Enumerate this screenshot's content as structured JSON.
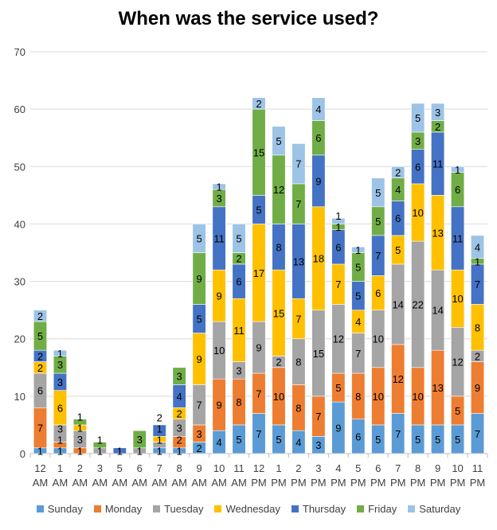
{
  "chart_data": {
    "type": "stacked-bar",
    "title": "When was the service used?",
    "xlabel": "",
    "ylabel": "",
    "ylim": [
      0,
      70
    ],
    "yticks": [
      0,
      10,
      20,
      30,
      40,
      50,
      60,
      70
    ],
    "grid": true,
    "legend_position": "bottom",
    "data_labels": true,
    "categories": [
      [
        "12",
        "AM"
      ],
      [
        "1",
        "AM"
      ],
      [
        "2",
        "AM"
      ],
      [
        "3",
        "AM"
      ],
      [
        "5",
        "AM"
      ],
      [
        "6",
        "AM"
      ],
      [
        "7",
        "AM"
      ],
      [
        "8",
        "AM"
      ],
      [
        "9",
        "AM"
      ],
      [
        "10",
        "AM"
      ],
      [
        "11",
        "AM"
      ],
      [
        "12",
        "PM"
      ],
      [
        "1",
        "PM"
      ],
      [
        "2",
        "PM"
      ],
      [
        "3",
        "PM"
      ],
      [
        "4",
        "PM"
      ],
      [
        "5",
        "PM"
      ],
      [
        "6",
        "PM"
      ],
      [
        "7",
        "PM"
      ],
      [
        "8",
        "PM"
      ],
      [
        "9",
        "PM"
      ],
      [
        "10",
        "PM"
      ],
      [
        "11",
        "PM"
      ]
    ],
    "series": [
      {
        "name": "Sunday",
        "color": "#5b9bd5",
        "values": [
          1,
          1,
          0,
          0,
          0,
          0,
          1,
          1,
          2,
          4,
          5,
          7,
          5,
          4,
          3,
          9,
          6,
          5,
          7,
          5,
          5,
          5,
          7
        ]
      },
      {
        "name": "Monday",
        "color": "#ed7d31",
        "values": [
          7,
          1,
          1,
          0,
          0,
          0,
          0,
          2,
          3,
          9,
          8,
          7,
          10,
          8,
          7,
          5,
          8,
          10,
          12,
          10,
          13,
          5,
          9
        ]
      },
      {
        "name": "Tuesday",
        "color": "#a5a5a5",
        "values": [
          6,
          3,
          3,
          1,
          0,
          1,
          1,
          3,
          7,
          10,
          3,
          9,
          2,
          8,
          15,
          12,
          7,
          10,
          14,
          22,
          14,
          12,
          2
        ]
      },
      {
        "name": "Wednesday",
        "color": "#ffc000",
        "values": [
          2,
          6,
          1,
          0,
          0,
          0,
          1,
          2,
          9,
          9,
          11,
          17,
          15,
          7,
          18,
          7,
          4,
          6,
          5,
          10,
          13,
          10,
          8
        ]
      },
      {
        "name": "Thursday",
        "color": "#4472c4",
        "values": [
          2,
          3,
          0,
          0,
          1,
          0,
          2,
          4,
          5,
          11,
          6,
          5,
          8,
          13,
          9,
          6,
          5,
          7,
          6,
          6,
          11,
          11,
          7
        ]
      },
      {
        "name": "Friday",
        "color": "#70ad47",
        "values": [
          5,
          3,
          1,
          1,
          0,
          3,
          0,
          3,
          9,
          3,
          2,
          15,
          12,
          7,
          6,
          1,
          5,
          5,
          4,
          3,
          2,
          6,
          1
        ]
      },
      {
        "name": "Saturday",
        "color": "#9dc3e6",
        "values": [
          2,
          1,
          0,
          0,
          0,
          0,
          0,
          0,
          5,
          1,
          5,
          2,
          5,
          7,
          4,
          1,
          1,
          5,
          2,
          5,
          3,
          1,
          4
        ]
      }
    ]
  }
}
